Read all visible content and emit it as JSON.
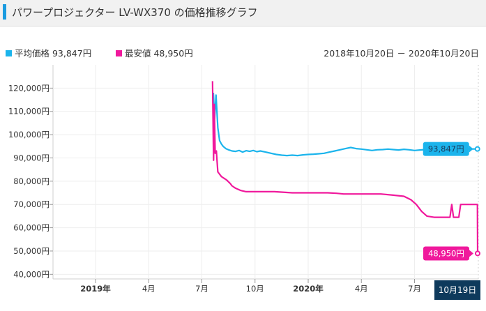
{
  "header": {
    "title": "パワープロジェクター LV-WX370 の価格推移グラフ"
  },
  "legend": {
    "avg_label": "平均価格 93,847円",
    "min_label": "最安値 48,950円",
    "date_range": "2018年10月20日 － 2020年10月20日"
  },
  "colors": {
    "avg": "#1bb4ec",
    "min": "#f0199c",
    "accent": "#1a9be0",
    "current_date_bg": "#0e3a5c"
  },
  "chart_data": {
    "type": "line",
    "title": "パワープロジェクター LV-WX370 の価格推移グラフ",
    "xlabel": "",
    "ylabel": "",
    "xlim": [
      0,
      24.0
    ],
    "ylim": [
      38000,
      130000
    ],
    "yticks": [
      40000,
      50000,
      60000,
      70000,
      80000,
      90000,
      100000,
      110000,
      120000
    ],
    "ytick_labels": [
      "40,000円",
      "50,000円",
      "60,000円",
      "70,000円",
      "80,000円",
      "90,000円",
      "100,000円",
      "110,000円",
      "120,000円"
    ],
    "xticks": [
      {
        "x": 2.4,
        "label": "2019年",
        "major": true
      },
      {
        "x": 5.4,
        "label": "4月",
        "major": false
      },
      {
        "x": 8.4,
        "label": "7月",
        "major": false
      },
      {
        "x": 11.4,
        "label": "10月",
        "major": false
      },
      {
        "x": 14.4,
        "label": "2020年",
        "major": true
      },
      {
        "x": 17.4,
        "label": "4月",
        "major": false
      },
      {
        "x": 20.4,
        "label": "7月",
        "major": false
      }
    ],
    "current_date_label": "10月19日",
    "series": [
      {
        "name": "平均価格",
        "color": "#1bb4ec",
        "end_label": "93,847円",
        "points": [
          [
            9.05,
            118000
          ],
          [
            9.12,
            107000
          ],
          [
            9.2,
            117000
          ],
          [
            9.3,
            103000
          ],
          [
            9.4,
            97500
          ],
          [
            9.5,
            96000
          ],
          [
            9.6,
            95000
          ],
          [
            9.75,
            94000
          ],
          [
            9.9,
            93500
          ],
          [
            10.1,
            93000
          ],
          [
            10.3,
            92800
          ],
          [
            10.5,
            93200
          ],
          [
            10.7,
            92500
          ],
          [
            10.9,
            93100
          ],
          [
            11.1,
            92800
          ],
          [
            11.3,
            93200
          ],
          [
            11.5,
            92700
          ],
          [
            11.7,
            93000
          ],
          [
            12.0,
            92500
          ],
          [
            12.3,
            92000
          ],
          [
            12.6,
            91500
          ],
          [
            12.9,
            91200
          ],
          [
            13.2,
            91000
          ],
          [
            13.5,
            91200
          ],
          [
            13.8,
            91000
          ],
          [
            14.1,
            91300
          ],
          [
            14.4,
            91500
          ],
          [
            14.7,
            91600
          ],
          [
            15.0,
            91800
          ],
          [
            15.3,
            92000
          ],
          [
            15.6,
            92500
          ],
          [
            15.9,
            93000
          ],
          [
            16.2,
            93500
          ],
          [
            16.5,
            94000
          ],
          [
            16.8,
            94500
          ],
          [
            17.1,
            94000
          ],
          [
            17.4,
            93800
          ],
          [
            17.7,
            93500
          ],
          [
            18.0,
            93200
          ],
          [
            18.3,
            93500
          ],
          [
            18.6,
            93600
          ],
          [
            18.9,
            93800
          ],
          [
            19.2,
            93600
          ],
          [
            19.5,
            93400
          ],
          [
            19.8,
            93700
          ],
          [
            20.1,
            93500
          ],
          [
            20.4,
            93200
          ],
          [
            20.7,
            93400
          ],
          [
            21.0,
            93600
          ],
          [
            21.3,
            93800
          ],
          [
            21.6,
            93600
          ],
          [
            21.9,
            93700
          ],
          [
            22.2,
            93800
          ],
          [
            22.5,
            93900
          ],
          [
            22.8,
            93900
          ],
          [
            23.1,
            94000
          ],
          [
            23.4,
            93900
          ],
          [
            23.7,
            93847
          ],
          [
            23.95,
            93847
          ]
        ]
      },
      {
        "name": "最安値",
        "color": "#f0199c",
        "end_label": "48,950円",
        "points": [
          [
            9.0,
            123000
          ],
          [
            9.06,
            89000
          ],
          [
            9.1,
            113000
          ],
          [
            9.15,
            92000
          ],
          [
            9.22,
            93000
          ],
          [
            9.3,
            84000
          ],
          [
            9.5,
            82000
          ],
          [
            9.8,
            80500
          ],
          [
            10.0,
            79000
          ],
          [
            10.1,
            78000
          ],
          [
            10.3,
            77000
          ],
          [
            10.6,
            76000
          ],
          [
            10.9,
            75500
          ],
          [
            11.5,
            75500
          ],
          [
            12.5,
            75500
          ],
          [
            13.5,
            75000
          ],
          [
            14.5,
            75000
          ],
          [
            15.5,
            75000
          ],
          [
            16.0,
            74800
          ],
          [
            16.4,
            74500
          ],
          [
            16.8,
            74500
          ],
          [
            17.5,
            74500
          ],
          [
            18.5,
            74500
          ],
          [
            19.2,
            74000
          ],
          [
            19.8,
            73500
          ],
          [
            20.2,
            72000
          ],
          [
            20.5,
            70000
          ],
          [
            20.8,
            67000
          ],
          [
            21.1,
            65000
          ],
          [
            21.5,
            64500
          ],
          [
            22.0,
            64500
          ],
          [
            22.4,
            64500
          ],
          [
            22.5,
            70000
          ],
          [
            22.6,
            64500
          ],
          [
            22.9,
            64500
          ],
          [
            23.0,
            70000
          ],
          [
            23.5,
            70000
          ],
          [
            23.95,
            70000
          ],
          [
            23.96,
            48950
          ]
        ]
      }
    ]
  }
}
